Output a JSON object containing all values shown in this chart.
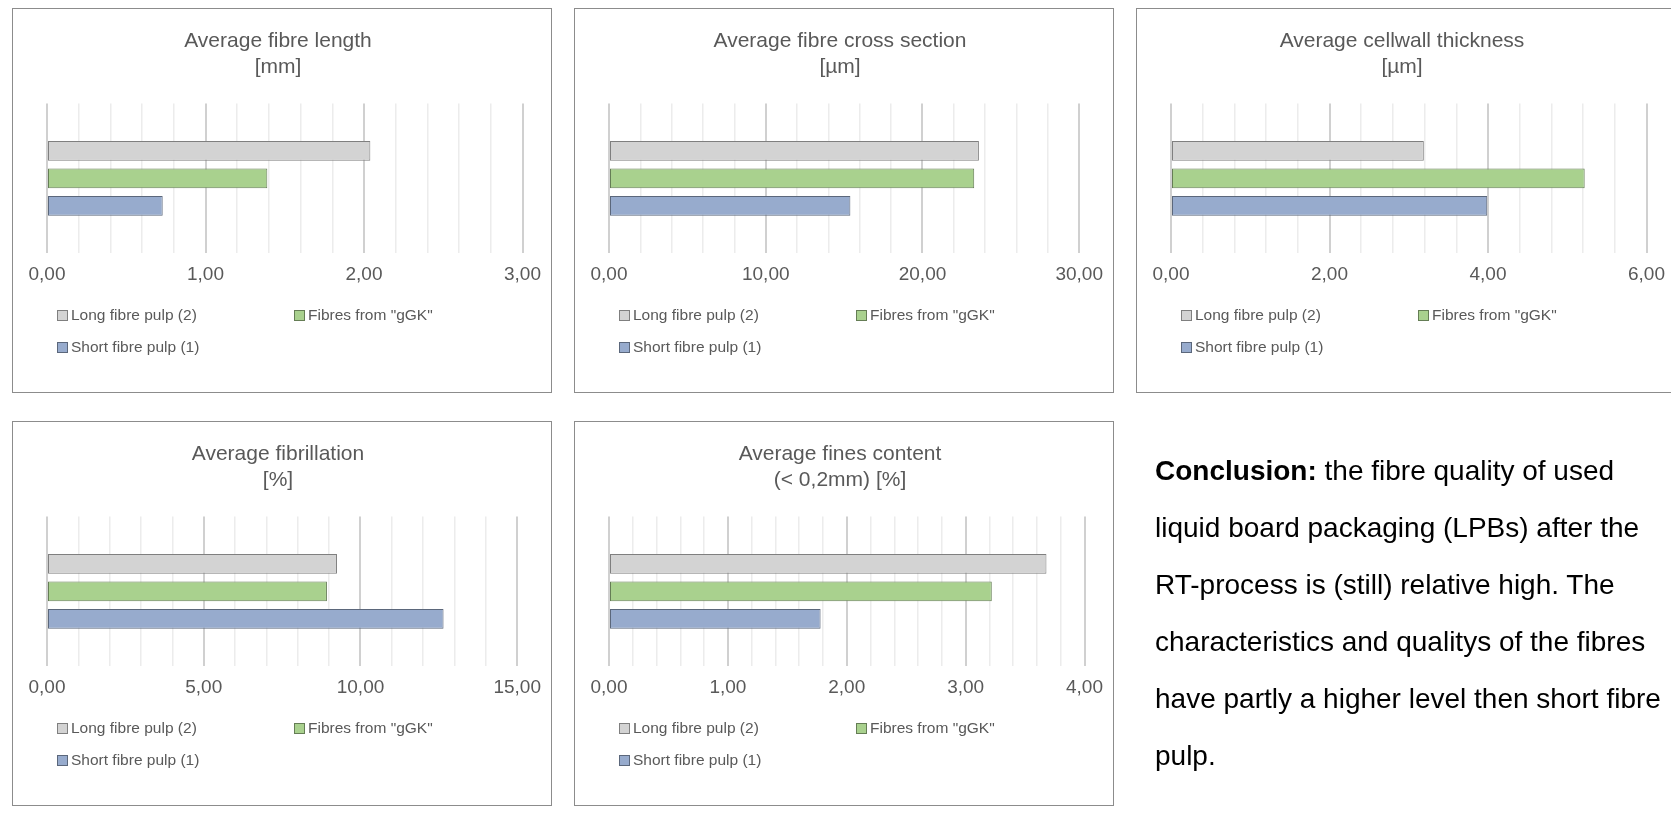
{
  "chart_data": [
    {
      "type": "bar",
      "orientation": "horizontal",
      "title": "Average fibre length\n[mm]",
      "categories": [
        null
      ],
      "legend": "bottom",
      "grid": "x",
      "xlim": [
        0,
        3
      ],
      "xticks": [
        {
          "value": 0,
          "label": "0,00"
        },
        {
          "value": 0.2,
          "label": null
        },
        {
          "value": 0.4,
          "label": null
        },
        {
          "value": 0.6,
          "label": null
        },
        {
          "value": 0.8,
          "label": null
        },
        {
          "value": 1,
          "label": "1,00"
        },
        {
          "value": 1.2,
          "label": null
        },
        {
          "value": 1.4,
          "label": null
        },
        {
          "value": 1.6,
          "label": null
        },
        {
          "value": 1.8,
          "label": null
        },
        {
          "value": 2,
          "label": "2,00"
        },
        {
          "value": 2.2,
          "label": null
        },
        {
          "value": 2.4,
          "label": null
        },
        {
          "value": 2.6,
          "label": null
        },
        {
          "value": 2.8,
          "label": null
        },
        {
          "value": 3,
          "label": "3,00"
        }
      ],
      "series": [
        {
          "name": "Long fibre pulp (2)",
          "color": "#d3d3d3",
          "values": [
            2.04
          ]
        },
        {
          "name": "Fibres from \"gGK\"",
          "color": "#a9d18e",
          "values": [
            1.39
          ]
        },
        {
          "name": "Short fibre pulp (1)",
          "color": "#97abcd",
          "values": [
            0.73
          ]
        }
      ]
    },
    {
      "type": "bar",
      "orientation": "horizontal",
      "title": "Average fibre cross section\n[µm]",
      "categories": [
        null
      ],
      "legend": "bottom",
      "grid": "x",
      "xlim": [
        0,
        30
      ],
      "xticks": [
        {
          "value": 0,
          "label": "0,00"
        },
        {
          "value": 2,
          "label": null
        },
        {
          "value": 4,
          "label": null
        },
        {
          "value": 6,
          "label": null
        },
        {
          "value": 8,
          "label": null
        },
        {
          "value": 10,
          "label": "10,00"
        },
        {
          "value": 12,
          "label": null
        },
        {
          "value": 14,
          "label": null
        },
        {
          "value": 16,
          "label": null
        },
        {
          "value": 18,
          "label": null
        },
        {
          "value": 20,
          "label": "20,00"
        },
        {
          "value": 22,
          "label": null
        },
        {
          "value": 24,
          "label": null
        },
        {
          "value": 26,
          "label": null
        },
        {
          "value": 28,
          "label": null
        },
        {
          "value": 30,
          "label": "30,00"
        }
      ],
      "series": [
        {
          "name": "Long fibre pulp (2)",
          "color": "#d3d3d3",
          "values": [
            23.6
          ]
        },
        {
          "name": "Fibres from \"gGK\"",
          "color": "#a9d18e",
          "values": [
            23.3
          ]
        },
        {
          "name": "Short fibre pulp (1)",
          "color": "#97abcd",
          "values": [
            15.4
          ]
        }
      ]
    },
    {
      "type": "bar",
      "orientation": "horizontal",
      "title": "Average cellwall thickness\n[µm]",
      "categories": [
        null
      ],
      "legend": "bottom",
      "grid": "x",
      "xlim": [
        0,
        6
      ],
      "xticks": [
        {
          "value": 0,
          "label": "0,00"
        },
        {
          "value": 0.4,
          "label": null
        },
        {
          "value": 0.8,
          "label": null
        },
        {
          "value": 1.2,
          "label": null
        },
        {
          "value": 1.6,
          "label": null
        },
        {
          "value": 2,
          "label": "2,00"
        },
        {
          "value": 2.4,
          "label": null
        },
        {
          "value": 2.8,
          "label": null
        },
        {
          "value": 3.2,
          "label": null
        },
        {
          "value": 3.6,
          "label": null
        },
        {
          "value": 4,
          "label": "4,00"
        },
        {
          "value": 4.4,
          "label": null
        },
        {
          "value": 4.8,
          "label": null
        },
        {
          "value": 5.2,
          "label": null
        },
        {
          "value": 5.6,
          "label": null
        },
        {
          "value": 6,
          "label": "6,00"
        }
      ],
      "series": [
        {
          "name": "Long fibre pulp (2)",
          "color": "#d3d3d3",
          "values": [
            3.19
          ]
        },
        {
          "name": "Fibres from \"gGK\"",
          "color": "#a9d18e",
          "values": [
            5.22
          ]
        },
        {
          "name": "Short fibre pulp (1)",
          "color": "#97abcd",
          "values": [
            3.99
          ]
        }
      ]
    },
    {
      "type": "bar",
      "orientation": "horizontal",
      "title": "Average fibrillation\n[%]",
      "categories": [
        null
      ],
      "legend": "bottom",
      "grid": "x",
      "xlim": [
        0,
        15
      ],
      "xticks": [
        {
          "value": 0,
          "label": "0,00"
        },
        {
          "value": 1,
          "label": null
        },
        {
          "value": 2,
          "label": null
        },
        {
          "value": 3,
          "label": null
        },
        {
          "value": 4,
          "label": null
        },
        {
          "value": 5,
          "label": "5,00"
        },
        {
          "value": 6,
          "label": null
        },
        {
          "value": 7,
          "label": null
        },
        {
          "value": 8,
          "label": null
        },
        {
          "value": 9,
          "label": null
        },
        {
          "value": 10,
          "label": "10,00"
        },
        {
          "value": 11,
          "label": null
        },
        {
          "value": 12,
          "label": null
        },
        {
          "value": 13,
          "label": null
        },
        {
          "value": 14,
          "label": null
        },
        {
          "value": 15,
          "label": "15,00"
        }
      ],
      "series": [
        {
          "name": "Long fibre pulp (2)",
          "color": "#d3d3d3",
          "values": [
            9.25
          ]
        },
        {
          "name": "Fibres from \"gGK\"",
          "color": "#a9d18e",
          "values": [
            8.93
          ]
        },
        {
          "name": "Short fibre pulp (1)",
          "color": "#97abcd",
          "values": [
            12.65
          ]
        }
      ]
    },
    {
      "type": "bar",
      "orientation": "horizontal",
      "title": "Average fines content\n(< 0,2mm) [%]",
      "categories": [
        null
      ],
      "legend": "bottom",
      "grid": "x",
      "xlim": [
        0,
        4
      ],
      "xticks": [
        {
          "value": 0,
          "label": "0,00"
        },
        {
          "value": 0.2,
          "label": null
        },
        {
          "value": 0.4,
          "label": null
        },
        {
          "value": 0.6,
          "label": null
        },
        {
          "value": 0.8,
          "label": null
        },
        {
          "value": 1,
          "label": "1,00"
        },
        {
          "value": 1.2,
          "label": null
        },
        {
          "value": 1.4,
          "label": null
        },
        {
          "value": 1.6,
          "label": null
        },
        {
          "value": 1.8,
          "label": null
        },
        {
          "value": 2,
          "label": "2,00"
        },
        {
          "value": 2.2,
          "label": null
        },
        {
          "value": 2.4,
          "label": null
        },
        {
          "value": 2.6,
          "label": null
        },
        {
          "value": 2.8,
          "label": null
        },
        {
          "value": 3,
          "label": "3,00"
        },
        {
          "value": 3.2,
          "label": null
        },
        {
          "value": 3.4,
          "label": null
        },
        {
          "value": 3.6,
          "label": null
        },
        {
          "value": 3.8,
          "label": null
        },
        {
          "value": 4,
          "label": "4,00"
        }
      ],
      "series": [
        {
          "name": "Long fibre pulp (2)",
          "color": "#d3d3d3",
          "values": [
            3.68
          ]
        },
        {
          "name": "Fibres from \"gGK\"",
          "color": "#a9d18e",
          "values": [
            3.22
          ]
        },
        {
          "name": "Short fibre pulp (1)",
          "color": "#97abcd",
          "values": [
            1.78
          ]
        }
      ]
    },
    {
      "type": "other",
      "title": "Conclusion:",
      "annotations": [
        "the fibre quality of used liquid board packaging (LPBs) after the RT-process is (still) relative high. The characteristics and qualitys of the fibres have partly a higher level then short fibre pulp."
      ]
    }
  ]
}
